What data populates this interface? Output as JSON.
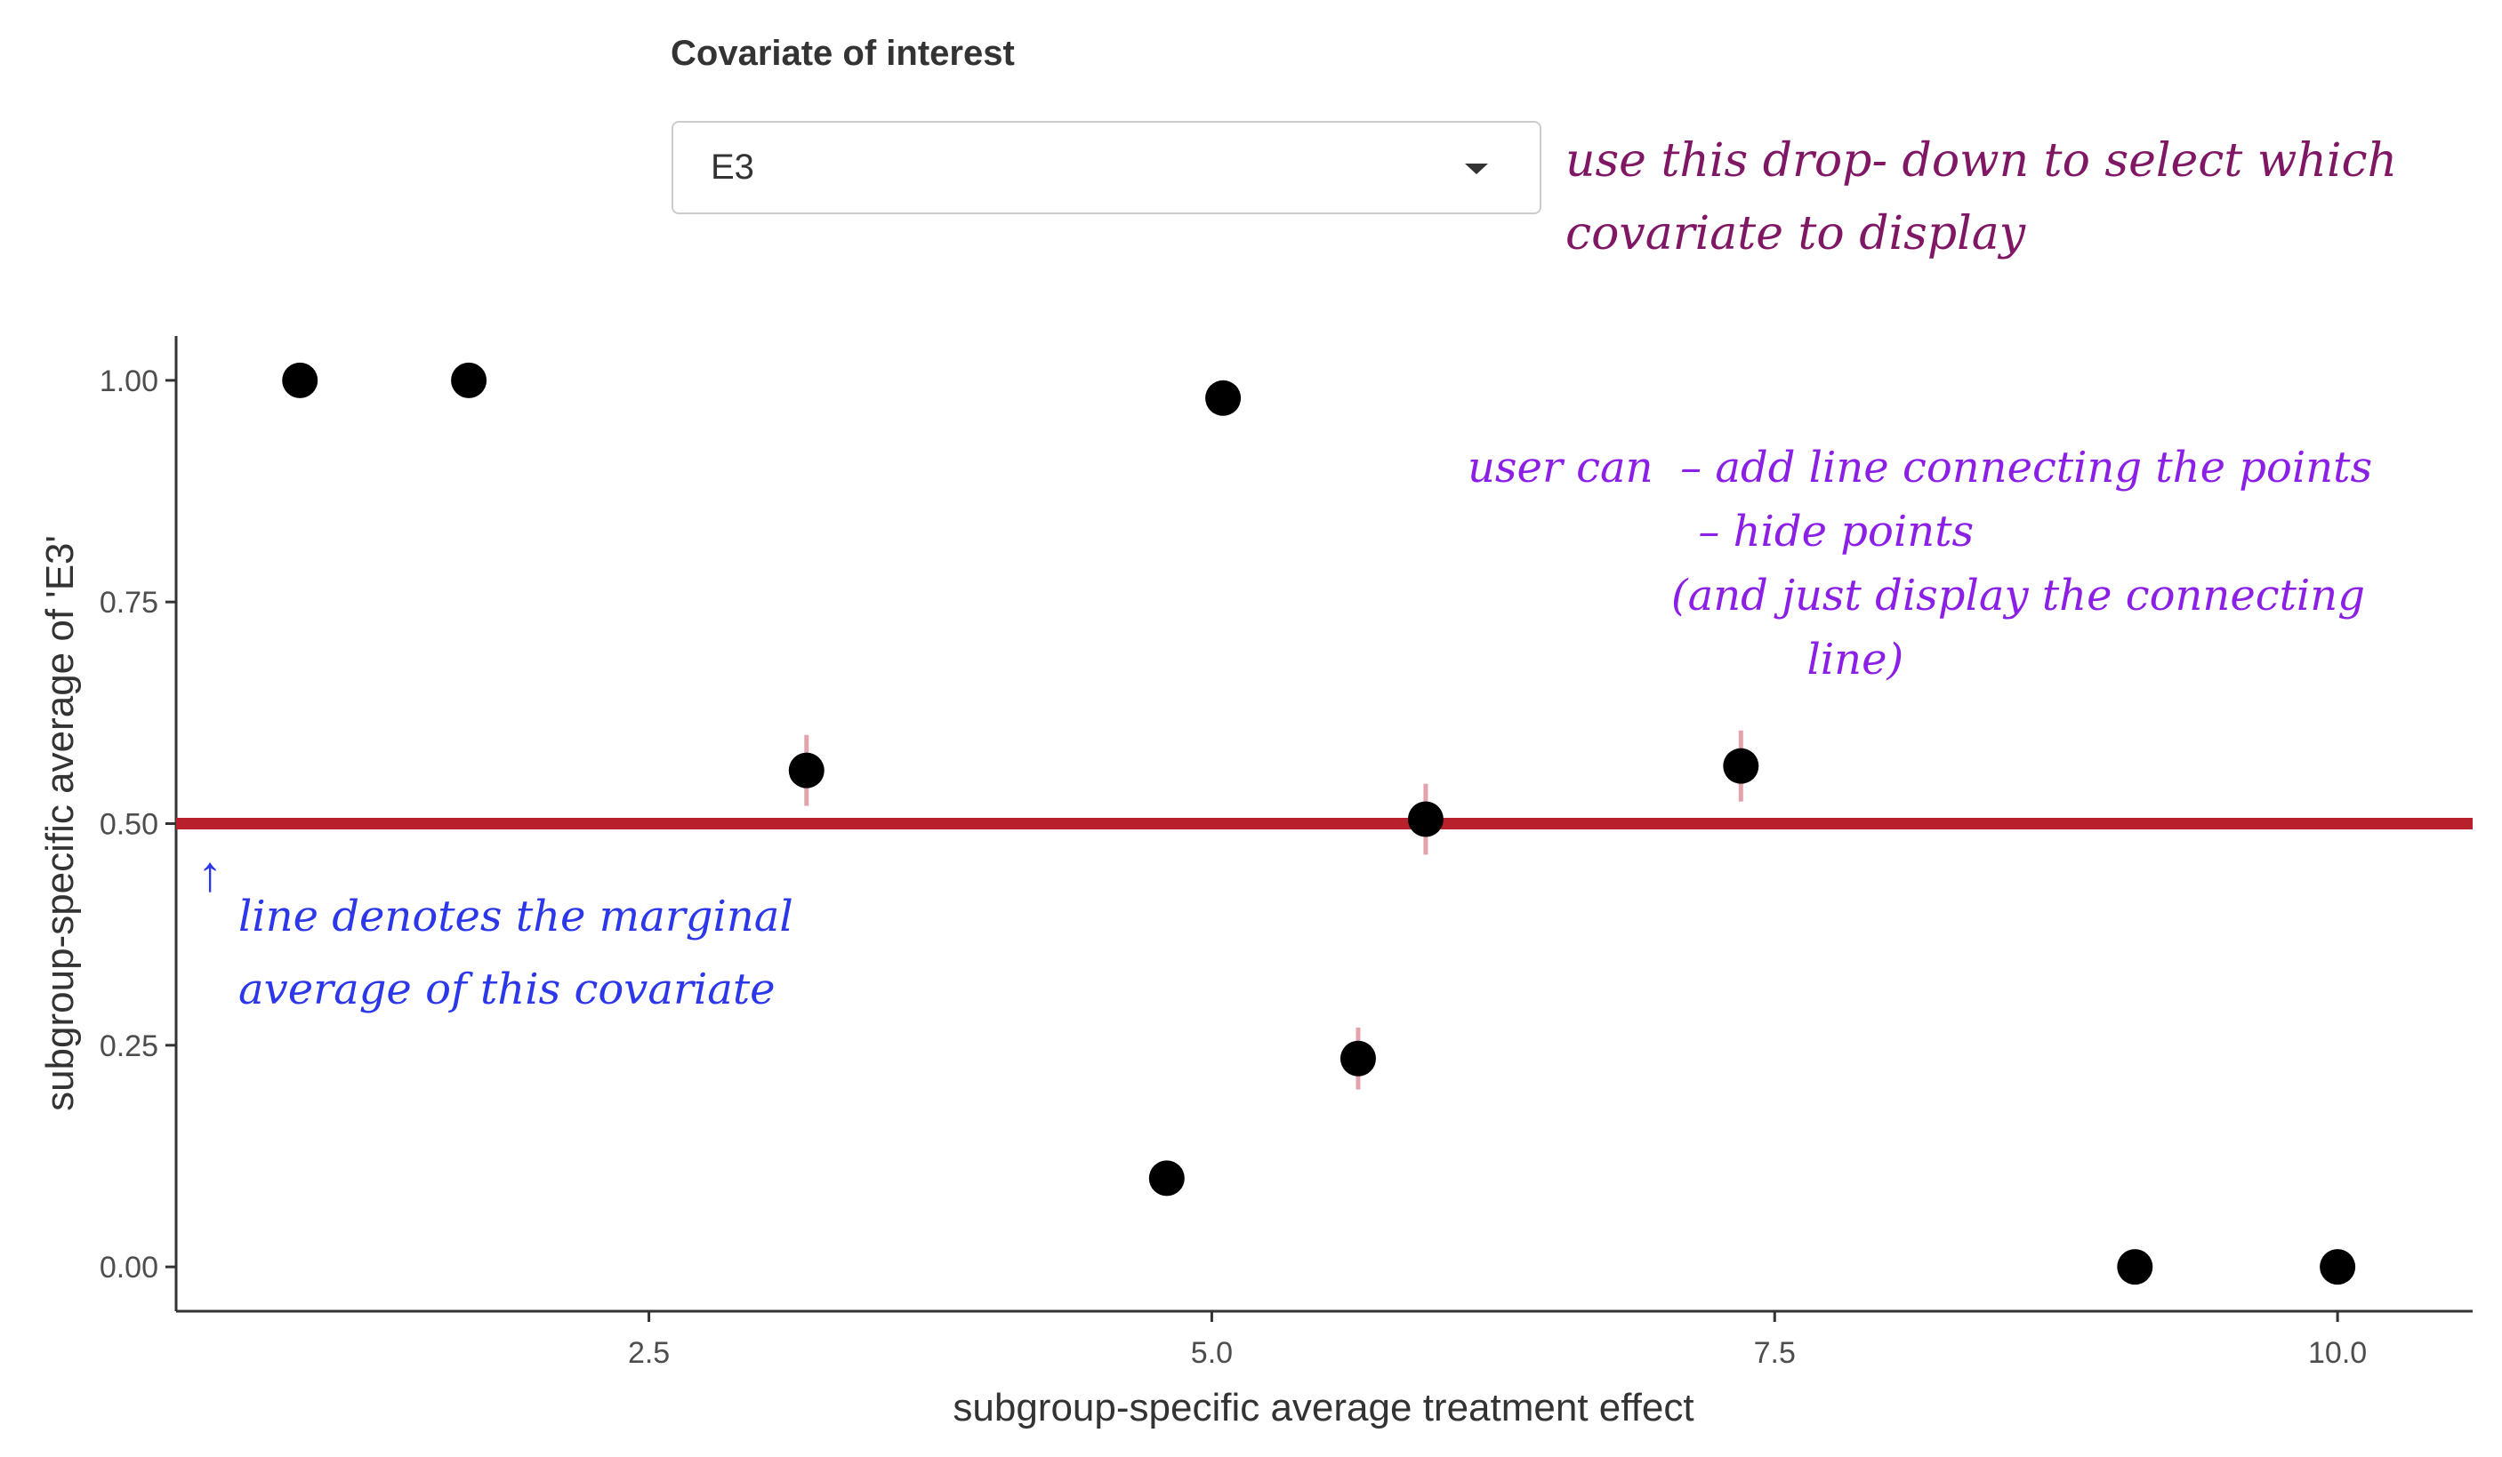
{
  "control": {
    "label": "Covariate of interest",
    "selected": "E3"
  },
  "annotations": {
    "dropdown_note": "use this drop- down to select which\ncovariate to display",
    "user_note": "user can  – add line connecting the points\n                 – hide points\n               (and just display the connecting\n                         line)",
    "line_note": "line denotes the marginal\naverage of this covariate",
    "colors": {
      "dropdown": "#7f1764",
      "user": "#8b1fe6",
      "line": "#2b37e8"
    }
  },
  "chart_data": {
    "type": "scatter",
    "xlabel": "subgroup-specific average treatment effect",
    "ylabel": "subgroup-specific average of 'E3'",
    "xlim": [
      0.4,
      10.6
    ],
    "ylim": [
      -0.05,
      1.05
    ],
    "x_ticks": [
      "2.5",
      "5.0",
      "7.5",
      "10.0"
    ],
    "y_ticks": [
      "0.00",
      "0.25",
      "0.50",
      "0.75",
      "1.00"
    ],
    "reference_line": {
      "y": 0.5,
      "color": "#b8202b"
    },
    "error_bar_color": "#e2a3ad",
    "point_color": "#000000",
    "points": [
      {
        "x": 0.95,
        "y": 1.0,
        "err": 0
      },
      {
        "x": 1.7,
        "y": 1.0,
        "err": 0
      },
      {
        "x": 3.2,
        "y": 0.56,
        "err": 0.04
      },
      {
        "x": 4.8,
        "y": 0.1,
        "err": 0
      },
      {
        "x": 5.05,
        "y": 0.98,
        "err": 0
      },
      {
        "x": 5.65,
        "y": 0.235,
        "err": 0.035
      },
      {
        "x": 5.95,
        "y": 0.505,
        "err": 0.04
      },
      {
        "x": 7.35,
        "y": 0.565,
        "err": 0.04
      },
      {
        "x": 9.1,
        "y": 0.0,
        "err": 0
      },
      {
        "x": 10.0,
        "y": 0.0,
        "err": 0
      }
    ],
    "grid": false,
    "legend": "none"
  }
}
